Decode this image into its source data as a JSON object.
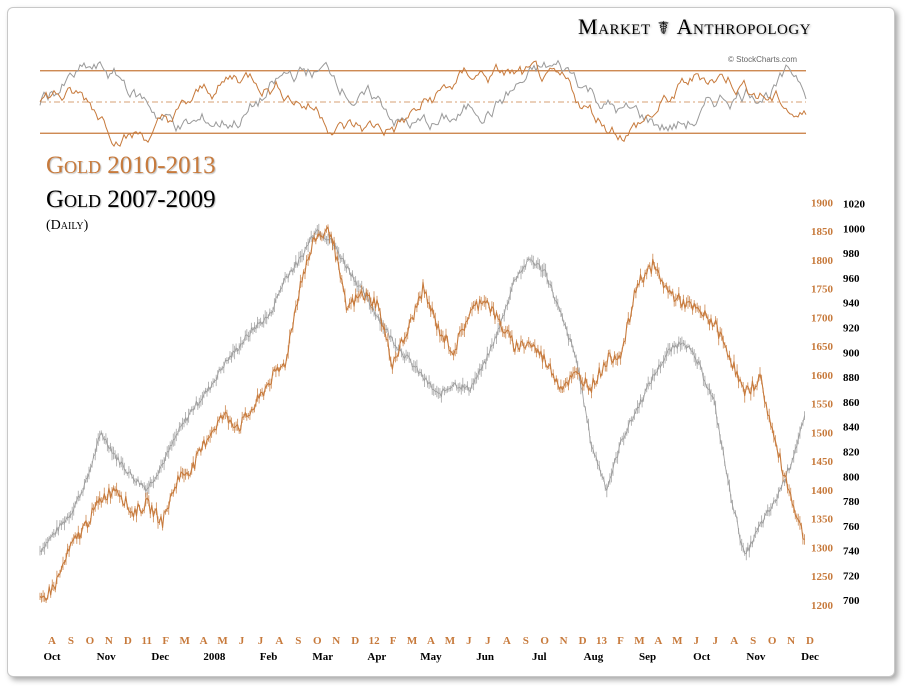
{
  "brand": {
    "left": "Market",
    "glyph": "☤",
    "right": "Anthropology"
  },
  "credit": "© StockCharts.com",
  "chart_data": {
    "type": "line",
    "title_primary": "Gold 2010-2013",
    "title_secondary": "Gold 2007-2009",
    "subtitle": "(Daily)",
    "colors": {
      "primary": "#c77a3c",
      "secondary": "#9a9a9a",
      "frame": "#c8c8c8"
    },
    "y_axis_primary": {
      "range": [
        1165,
        1930
      ],
      "ticks": [
        1200,
        1250,
        1300,
        1350,
        1400,
        1450,
        1500,
        1550,
        1600,
        1650,
        1700,
        1750,
        1800,
        1850,
        1900
      ]
    },
    "y_axis_secondary": {
      "range": [
        680,
        1035
      ],
      "ticks": [
        700,
        720,
        740,
        760,
        780,
        800,
        820,
        840,
        860,
        880,
        900,
        920,
        940,
        960,
        980,
        1000,
        1020
      ]
    },
    "x_labels_primary": [
      "A",
      "S",
      "O",
      "N",
      "D",
      "11",
      "F",
      "M",
      "A",
      "M",
      "J",
      "J",
      "A",
      "S",
      "O",
      "N",
      "D",
      "12",
      "F",
      "M",
      "A",
      "M",
      "J",
      "J",
      "A",
      "S",
      "O",
      "N",
      "D",
      "13",
      "F",
      "M",
      "A",
      "M",
      "J",
      "J",
      "A",
      "S",
      "O",
      "N",
      "D"
    ],
    "x_labels_secondary": [
      "Oct",
      "Nov",
      "Dec",
      "2008",
      "Feb",
      "Mar",
      "Apr",
      "May",
      "Jun",
      "Jul",
      "Aug",
      "Sep",
      "Oct",
      "Nov",
      "Dec"
    ],
    "series": [
      {
        "name": "Gold 2010-2013",
        "axis": "primary",
        "x": [
          0,
          2,
          4,
          6,
          8,
          10,
          12,
          14,
          16,
          18,
          20,
          22,
          24,
          26,
          28,
          30,
          32,
          34,
          36,
          38,
          40,
          42,
          44,
          46,
          48,
          50,
          52,
          54,
          56,
          58,
          60,
          62,
          64,
          66,
          68,
          70,
          72,
          74,
          76,
          78,
          80,
          82,
          84,
          86,
          88,
          90,
          92,
          94,
          96,
          98,
          100
        ],
        "values": [
          1205,
          1235,
          1300,
          1340,
          1385,
          1405,
          1360,
          1375,
          1345,
          1420,
          1440,
          1495,
          1530,
          1510,
          1545,
          1590,
          1620,
          1760,
          1840,
          1850,
          1715,
          1740,
          1725,
          1620,
          1675,
          1750,
          1680,
          1640,
          1705,
          1735,
          1690,
          1650,
          1655,
          1625,
          1580,
          1600,
          1580,
          1625,
          1640,
          1760,
          1790,
          1745,
          1725,
          1710,
          1690,
          1635,
          1565,
          1595,
          1480,
          1390,
          1305
        ]
      },
      {
        "name": "Gold 2007-2009",
        "axis": "secondary",
        "x": [
          0,
          2,
          4,
          6,
          8,
          10,
          12,
          14,
          16,
          18,
          20,
          22,
          24,
          26,
          28,
          30,
          32,
          34,
          36,
          38,
          40,
          42,
          44,
          46,
          48,
          50,
          52,
          54,
          56,
          58,
          60,
          62,
          64,
          66,
          68,
          70,
          72,
          74,
          76,
          78,
          80,
          82,
          84,
          86,
          88,
          90,
          92,
          94,
          96,
          98,
          100
        ],
        "values": [
          740,
          755,
          770,
          795,
          835,
          815,
          800,
          790,
          810,
          835,
          855,
          870,
          890,
          905,
          920,
          930,
          960,
          975,
          1000,
          990,
          970,
          950,
          930,
          910,
          895,
          880,
          865,
          875,
          870,
          890,
          920,
          960,
          975,
          965,
          930,
          895,
          825,
          790,
          830,
          855,
          880,
          900,
          910,
          890,
          860,
          790,
          735,
          760,
          780,
          810,
          850
        ]
      }
    ],
    "oscillator": {
      "upper": 70,
      "mid": 50,
      "lower": 30,
      "range": [
        18,
        82
      ]
    }
  }
}
